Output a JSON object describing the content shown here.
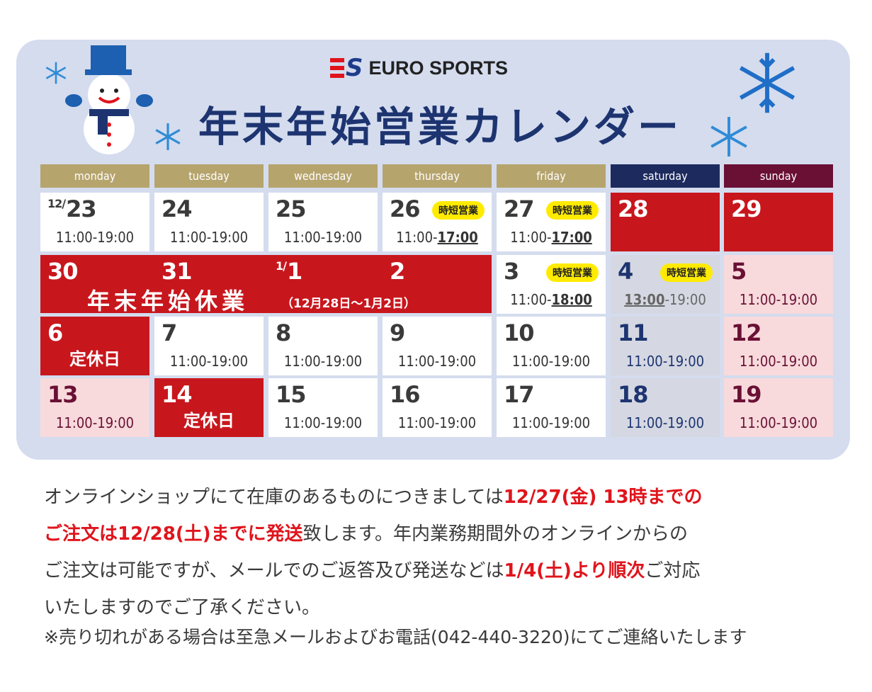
{
  "brand": {
    "mark": "S",
    "name": "EURO SPORTS"
  },
  "title": "年末年始営業カレンダー",
  "weekdays": [
    "monday",
    "tuesday",
    "wednesday",
    "thursday",
    "friday",
    "saturday",
    "sunday"
  ],
  "colors": {
    "gold": "#b6a46d",
    "navy": "#1d2a5e",
    "maroon": "#6a1035",
    "red": "#c8161d",
    "pink": "#f8dadc",
    "panel": "#d4dcee",
    "badge": "#ffeb00"
  },
  "days": {
    "d1223": {
      "month_prefix": "12/",
      "num": "23",
      "time": "11:00-19:00"
    },
    "d24": {
      "num": "24",
      "time": "11:00-19:00"
    },
    "d25": {
      "num": "25",
      "time": "11:00-19:00"
    },
    "d26": {
      "num": "26",
      "badge": "時短営業",
      "time_start": "11:00-",
      "time_end": "17:00"
    },
    "d27": {
      "num": "27",
      "badge": "時短営業",
      "time_start": "11:00-",
      "time_end": "17:00"
    },
    "d28": {
      "num": "28"
    },
    "d29": {
      "num": "29"
    },
    "d30": {
      "num": "30"
    },
    "d31": {
      "num": "31"
    },
    "d0101": {
      "month_prefix": "1/",
      "num": "1"
    },
    "d2": {
      "num": "2"
    },
    "d3": {
      "num": "3",
      "badge": "時短営業",
      "time_start": "11:00-",
      "time_end": "18:00"
    },
    "d4": {
      "num": "4",
      "badge": "時短営業",
      "time_start": "13:00",
      "time_end": "-19:00"
    },
    "d5": {
      "num": "5",
      "time": "11:00-19:00"
    },
    "d6": {
      "num": "6",
      "label": "定休日"
    },
    "d7": {
      "num": "7",
      "time": "11:00-19:00"
    },
    "d8": {
      "num": "8",
      "time": "11:00-19:00"
    },
    "d9": {
      "num": "9",
      "time": "11:00-19:00"
    },
    "d10": {
      "num": "10",
      "time": "11:00-19:00"
    },
    "d11": {
      "num": "11",
      "time": "11:00-19:00"
    },
    "d12": {
      "num": "12",
      "time": "11:00-19:00"
    },
    "d13": {
      "num": "13",
      "time": "11:00-19:00"
    },
    "d14": {
      "num": "14",
      "label": "定休日"
    },
    "d15": {
      "num": "15",
      "time": "11:00-19:00"
    },
    "d16": {
      "num": "16",
      "time": "11:00-19:00"
    },
    "d17": {
      "num": "17",
      "time": "11:00-19:00"
    },
    "d18": {
      "num": "18",
      "time": "11:00-19:00"
    },
    "d19": {
      "num": "19",
      "time": "11:00-19:00"
    }
  },
  "closure": {
    "label": "年末年始休業",
    "range": "（12月28日～1月2日）"
  },
  "notice": {
    "p1": "オンラインショップにて在庫のあるものにつきましては",
    "h1": "12/27(金) 13時までの",
    "h2": "ご注文は12/28(土)までに発送",
    "p2": "致します。年内業務期間外のオンラインからの",
    "p3": "ご注文は可能ですが、メールでのご返答及び発送などは",
    "h3": "1/4(土)より順次",
    "p4": "ご対応",
    "p5": "いたしますのでご了承ください。"
  },
  "footnote": "※売り切れがある場合は至急メールおよびお電話(042-440-3220)にてご連絡いたします",
  "decor": {
    "snowman_icon": "snowman-icon",
    "snowflake_icon": "snowflake-icon"
  }
}
